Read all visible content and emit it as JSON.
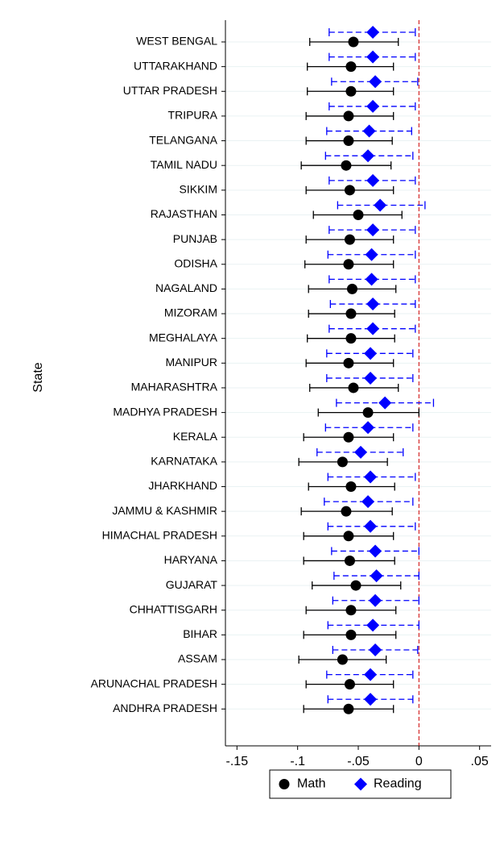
{
  "chart_data": {
    "type": "coefplot",
    "ylabel": "State",
    "categories": [
      "WEST BENGAL",
      "UTTARAKHAND",
      "UTTAR PRADESH",
      "TRIPURA",
      "TELANGANA",
      "TAMIL NADU",
      "SIKKIM",
      "RAJASTHAN",
      "PUNJAB",
      "ODISHA",
      "NAGALAND",
      "MIZORAM",
      "MEGHALAYA",
      "MANIPUR",
      "MAHARASHTRA",
      "MADHYA PRADESH",
      "KERALA",
      "KARNATAKA",
      "JHARKHAND",
      "JAMMU & KASHMIR",
      "HIMACHAL PRADESH",
      "HARYANA",
      "GUJARAT",
      "CHHATTISGARH",
      "BIHAR",
      "ASSAM",
      "ARUNACHAL PRADESH",
      "ANDHRA PRADESH"
    ],
    "series": [
      {
        "name": "Math",
        "color": "#000000",
        "marker": "circle",
        "dash": false,
        "values": [
          -0.054,
          -0.056,
          -0.056,
          -0.058,
          -0.058,
          -0.06,
          -0.057,
          -0.05,
          -0.057,
          -0.058,
          -0.055,
          -0.056,
          -0.056,
          -0.058,
          -0.054,
          -0.042,
          -0.058,
          -0.063,
          -0.056,
          -0.06,
          -0.058,
          -0.057,
          -0.052,
          -0.056,
          -0.056,
          -0.063,
          -0.057,
          -0.058
        ],
        "lower": [
          -0.09,
          -0.092,
          -0.092,
          -0.093,
          -0.093,
          -0.097,
          -0.093,
          -0.087,
          -0.093,
          -0.094,
          -0.091,
          -0.091,
          -0.092,
          -0.093,
          -0.09,
          -0.083,
          -0.095,
          -0.099,
          -0.091,
          -0.097,
          -0.095,
          -0.095,
          -0.088,
          -0.093,
          -0.095,
          -0.099,
          -0.093,
          -0.095
        ],
        "upper": [
          -0.017,
          -0.021,
          -0.021,
          -0.021,
          -0.022,
          -0.023,
          -0.021,
          -0.014,
          -0.021,
          -0.021,
          -0.019,
          -0.02,
          -0.02,
          -0.021,
          -0.017,
          0.0,
          -0.021,
          -0.026,
          -0.02,
          -0.022,
          -0.021,
          -0.02,
          -0.015,
          -0.019,
          -0.019,
          -0.027,
          -0.021,
          -0.021
        ]
      },
      {
        "name": "Reading",
        "color": "#0000ff",
        "marker": "diamond",
        "dash": true,
        "values": [
          -0.038,
          -0.038,
          -0.036,
          -0.038,
          -0.041,
          -0.042,
          -0.038,
          -0.032,
          -0.038,
          -0.039,
          -0.039,
          -0.038,
          -0.038,
          -0.04,
          -0.04,
          -0.028,
          -0.042,
          -0.048,
          -0.04,
          -0.042,
          -0.04,
          -0.036,
          -0.035,
          -0.036,
          -0.038,
          -0.036,
          -0.04,
          -0.04
        ],
        "lower": [
          -0.074,
          -0.074,
          -0.072,
          -0.074,
          -0.076,
          -0.077,
          -0.074,
          -0.067,
          -0.074,
          -0.075,
          -0.074,
          -0.073,
          -0.074,
          -0.076,
          -0.076,
          -0.068,
          -0.077,
          -0.084,
          -0.075,
          -0.078,
          -0.075,
          -0.072,
          -0.07,
          -0.071,
          -0.075,
          -0.071,
          -0.076,
          -0.075
        ],
        "upper": [
          -0.003,
          -0.003,
          -0.001,
          -0.003,
          -0.006,
          -0.005,
          -0.003,
          0.005,
          -0.003,
          -0.003,
          -0.003,
          -0.003,
          -0.003,
          -0.005,
          -0.005,
          0.012,
          -0.005,
          -0.013,
          -0.003,
          -0.005,
          -0.003,
          0.0,
          0.0,
          0.0,
          0.0,
          -0.001,
          -0.005,
          -0.005
        ]
      }
    ],
    "xlim": [
      -0.1595,
      0.0595
    ],
    "xticks": [
      {
        "value": -0.15,
        "label": "-.15"
      },
      {
        "value": -0.1,
        "label": "-.1"
      },
      {
        "value": -0.05,
        "label": "-.05"
      },
      0,
      {
        "value": 0.05,
        "label": ".05"
      }
    ],
    "refline": 0,
    "refline_color": "#cc0000",
    "grid": true,
    "legend": "bottom"
  }
}
